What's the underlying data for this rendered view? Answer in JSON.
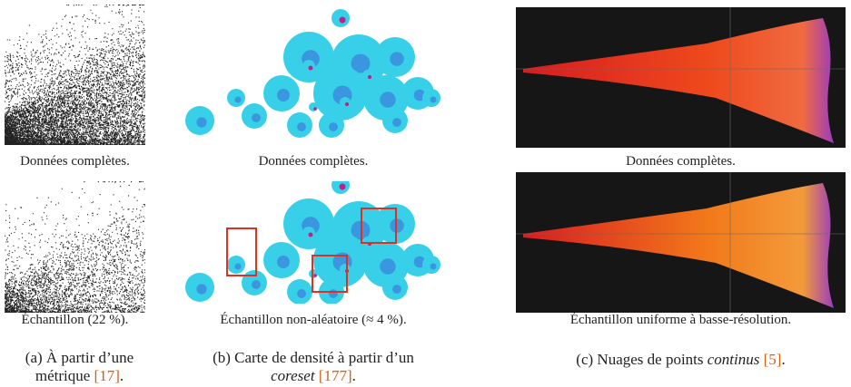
{
  "panels": [
    {
      "top_caption": "Données complètes.",
      "bottom_caption": "Échantillon (22 %).",
      "subcaption": {
        "label": "(a) À partir d’une métrique",
        "ref": "[17]",
        "end": "."
      }
    },
    {
      "top_caption": "Données complètes.",
      "bottom_caption": "Échantillon non-aléatoire (≈ 4 %).",
      "subcaption": {
        "label": "(b) Carte de densité à partir d’un",
        "emph": "coreset",
        "ref": "[177]",
        "end": "."
      }
    },
    {
      "top_caption": "Données complètes.",
      "bottom_caption": "Échantillon uniforme à basse-résolution.",
      "subcaption": {
        "label": "(c) Nuages de points",
        "emph": "continus",
        "ref": "[5]",
        "end": "."
      }
    }
  ]
}
